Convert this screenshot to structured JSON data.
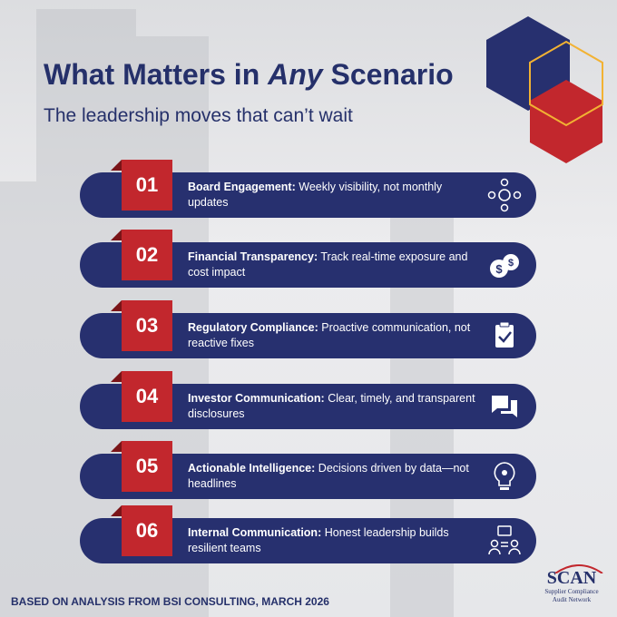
{
  "header": {
    "title_before": "What Matters in ",
    "title_emphasis": "Any",
    "title_after": " Scenario",
    "subtitle": "The leadership moves that can’t wait"
  },
  "items": [
    {
      "number": "01",
      "heading": "Board Engagement:",
      "text": "Weekly visibility, not monthly updates"
    },
    {
      "number": "02",
      "heading": "Financial Transparency:",
      "text": "Track real-time exposure and cost impact"
    },
    {
      "number": "03",
      "heading": "Regulatory Compliance:",
      "text": "Proactive communication, not reactive fixes"
    },
    {
      "number": "04",
      "heading": "Investor Communication:",
      "text": "Clear, timely, and transparent disclosures"
    },
    {
      "number": "05",
      "heading": "Actionable Intelligence:",
      "text": "Decisions driven by data—not headlines"
    },
    {
      "number": "06",
      "heading": "Internal Communication:",
      "text": "Honest leadership builds resilient teams"
    }
  ],
  "footer": "BASED ON ANALYSIS FROM BSI CONSULTING, MARCH 2026",
  "logo": {
    "name": "SCAN",
    "line1": "Supplier Compliance",
    "line2": "Audit Network"
  }
}
